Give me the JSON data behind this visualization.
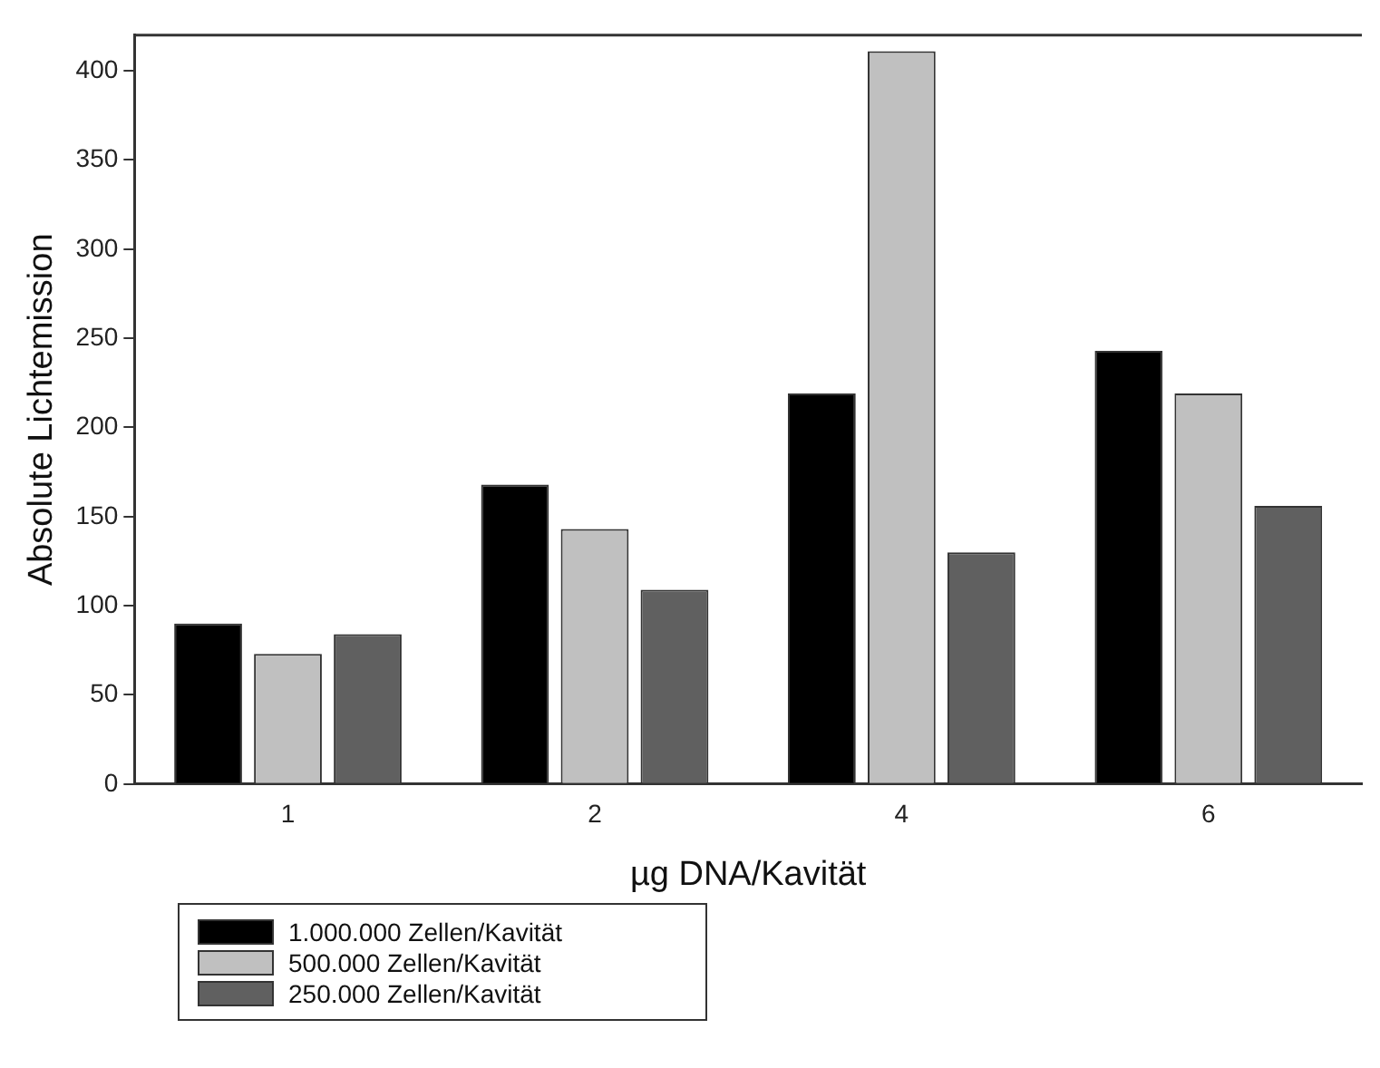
{
  "chart_data": {
    "type": "bar",
    "xlabel": "µg DNA/Kavität",
    "ylabel": "Absolute Lichtemission",
    "categories": [
      "1",
      "2",
      "4",
      "6"
    ],
    "series": [
      {
        "name": "1.000.000 Zellen/Kavität",
        "color": "#000000",
        "values": [
          90,
          168,
          219,
          243
        ]
      },
      {
        "name": "500.000 Zellen/Kavität",
        "color": "#c0c0c0",
        "values": [
          73,
          143,
          411,
          219
        ]
      },
      {
        "name": "250.000 Zellen/Kavität",
        "color": "#606060",
        "values": [
          84,
          109,
          130,
          156
        ]
      }
    ],
    "ylim": [
      0,
      420
    ],
    "yticks": [
      0,
      50,
      100,
      150,
      200,
      250,
      300,
      350,
      400
    ],
    "grid": false,
    "legend": "bottom left"
  }
}
